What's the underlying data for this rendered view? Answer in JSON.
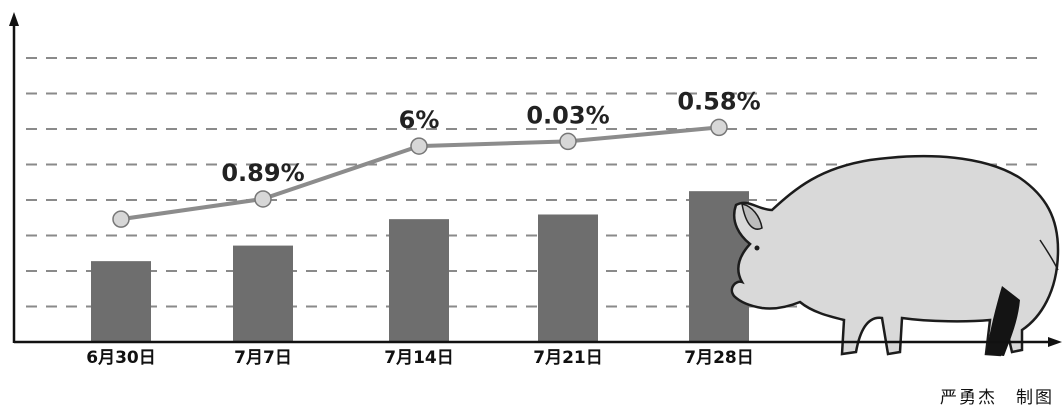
{
  "chart_data": {
    "type": "bar",
    "categories": [
      "6月30日",
      "7月7日",
      "7月14日",
      "7月21日",
      "7月28日"
    ],
    "series": [
      {
        "values": [
          13.2,
          14.2,
          15.9,
          16.2,
          17.7
        ]
      },
      {
        "values": [
          15.9,
          17.2,
          20.6,
          20.9,
          21.8
        ]
      }
    ],
    "data_labels": [
      "",
      "0.89%",
      "6%",
      "0.03%",
      "0.58%"
    ],
    "ylim": [
      8,
      30
    ],
    "grid": true,
    "colors": {
      "bar": "#6e6e6e",
      "line": "#8c8c8c",
      "marker": "#d7d7d7",
      "grid": "#8a8a8a"
    }
  },
  "credit": "严勇杰　制图",
  "illustration": "pig-icon"
}
